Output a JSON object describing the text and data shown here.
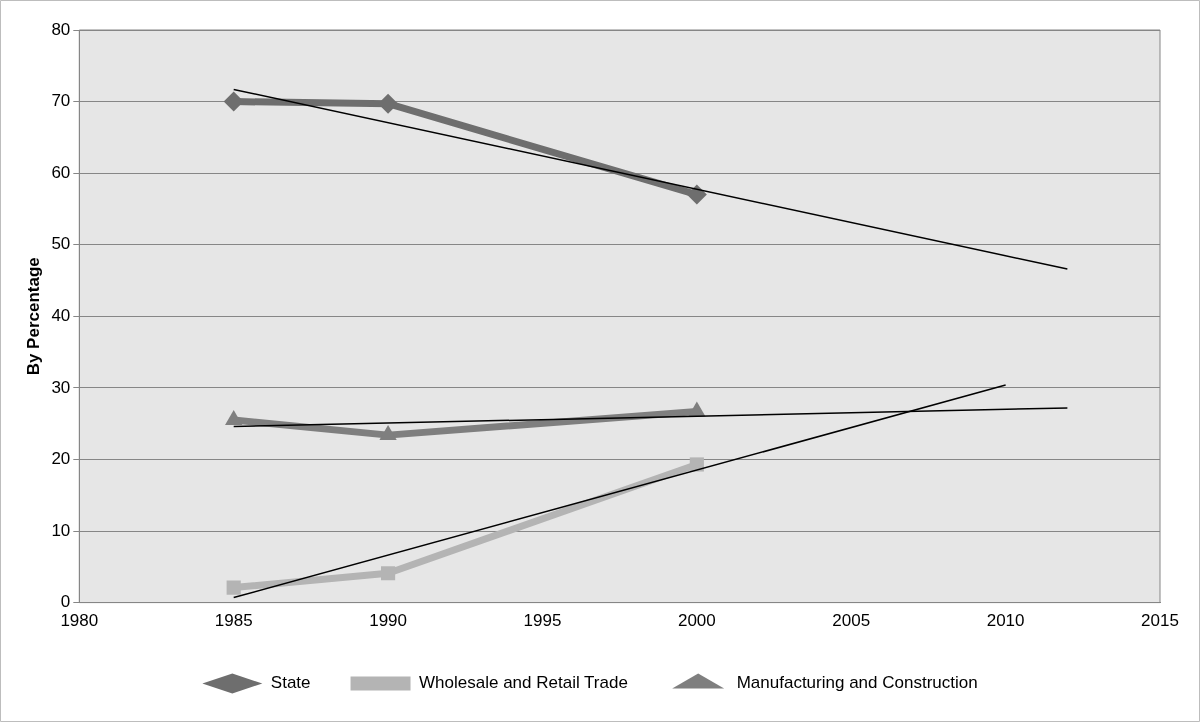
{
  "chart_data": {
    "type": "line",
    "ylabel": "By Percentage",
    "xlim": [
      1980,
      2015
    ],
    "xticks": [
      1980,
      1985,
      1990,
      1995,
      2000,
      2005,
      2010,
      2015
    ],
    "ylim": [
      0,
      80
    ],
    "yticks": [
      0,
      10,
      20,
      30,
      40,
      50,
      60,
      70,
      80
    ],
    "grid": "y",
    "legend": "bottom",
    "x": [
      1985,
      1990,
      2000
    ],
    "series": [
      {
        "name": "State",
        "color": "#6e6e6e",
        "marker": "diamond",
        "values": [
          70.0,
          69.7,
          57.0
        ]
      },
      {
        "name": "Wholesale and Retail Trade",
        "color": "#b4b4b4",
        "marker": "square",
        "values": [
          2.1,
          4.1,
          19.3
        ]
      },
      {
        "name": "Manufacturing and Construction",
        "color": "#7f7f7f",
        "marker": "triangle",
        "values": [
          25.5,
          23.4,
          26.7
        ]
      },
      {
        "type": "line",
        "color": "#000000",
        "marker": "none",
        "x": [
          1985,
          2012
        ],
        "values": [
          71.7,
          46.6
        ]
      },
      {
        "type": "line",
        "color": "#000000",
        "marker": "none",
        "x": [
          1985,
          2010
        ],
        "values": [
          0.7,
          30.4
        ]
      },
      {
        "type": "line",
        "color": "#000000",
        "marker": "none",
        "x": [
          1985,
          2012
        ],
        "values": [
          24.6,
          27.2
        ]
      }
    ]
  }
}
